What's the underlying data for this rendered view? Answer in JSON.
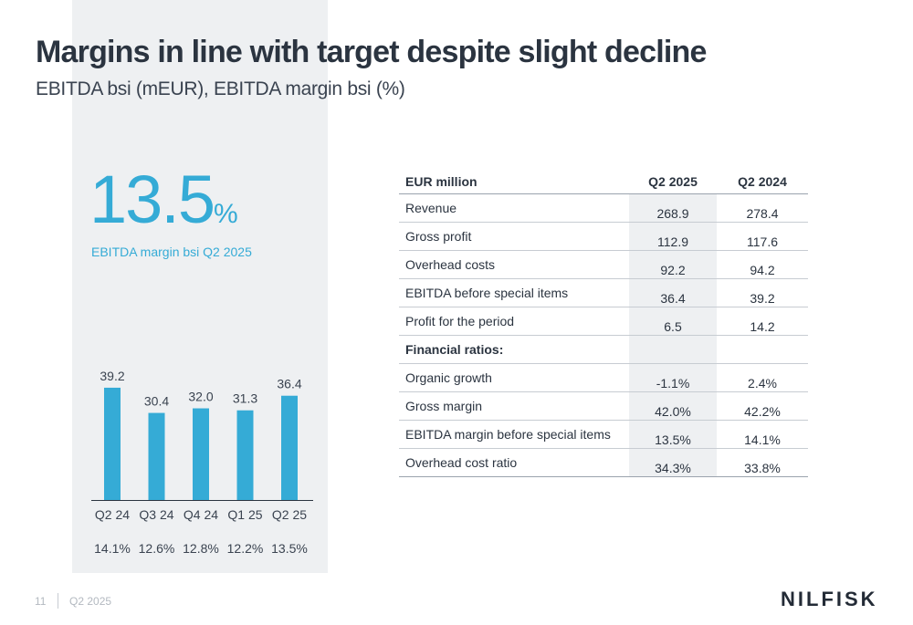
{
  "slide": {
    "title": "Margins in line with target despite slight decline",
    "subtitle": "EBITDA bsi (mEUR), EBITDA margin bsi (%)"
  },
  "kpi": {
    "value": "13.5",
    "unit": "%",
    "caption": "EBITDA margin bsi Q2 2025"
  },
  "chart_data": {
    "type": "bar",
    "categories": [
      "Q2 24",
      "Q3 24",
      "Q4 24",
      "Q1 25",
      "Q2 25"
    ],
    "values": [
      39.2,
      30.4,
      32.0,
      31.3,
      36.4
    ],
    "value_labels": [
      "39.2",
      "30.4",
      "32.0",
      "31.3",
      "36.4"
    ],
    "margins": [
      "14.1%",
      "12.6%",
      "12.8%",
      "12.2%",
      "13.5%"
    ],
    "ylim": [
      0,
      43
    ],
    "color": "#35abd6",
    "grid": false
  },
  "table": {
    "headers": [
      "EUR million",
      "Q2 2025",
      "Q2 2024"
    ],
    "rows": [
      {
        "label": "Revenue",
        "q2_2025": "268.9",
        "q2_2024": "278.4"
      },
      {
        "label": "Gross profit",
        "q2_2025": "112.9",
        "q2_2024": "117.6"
      },
      {
        "label": "Overhead costs",
        "q2_2025": "92.2",
        "q2_2024": "94.2"
      },
      {
        "label": "EBITDA before special items",
        "q2_2025": "36.4",
        "q2_2024": "39.2"
      },
      {
        "label": "Profit for the period",
        "q2_2025": "6.5",
        "q2_2024": "14.2"
      },
      {
        "label": "Financial ratios:",
        "q2_2025": "",
        "q2_2024": ""
      },
      {
        "label": "Organic growth",
        "q2_2025": "-1.1%",
        "q2_2024": "2.4%"
      },
      {
        "label": "Gross margin",
        "q2_2025": "42.0%",
        "q2_2024": "42.2%"
      },
      {
        "label": "EBITDA margin before special items",
        "q2_2025": "13.5%",
        "q2_2024": "14.1%"
      },
      {
        "label": "Overhead cost ratio",
        "q2_2025": "34.3%",
        "q2_2024": "33.8%"
      }
    ]
  },
  "footer": {
    "page_number": "11",
    "period": "Q2 2025",
    "logo": "NILFISK"
  },
  "colors": {
    "accent": "#35abd6",
    "panel": "#eef0f2",
    "text": "#2b3440"
  }
}
